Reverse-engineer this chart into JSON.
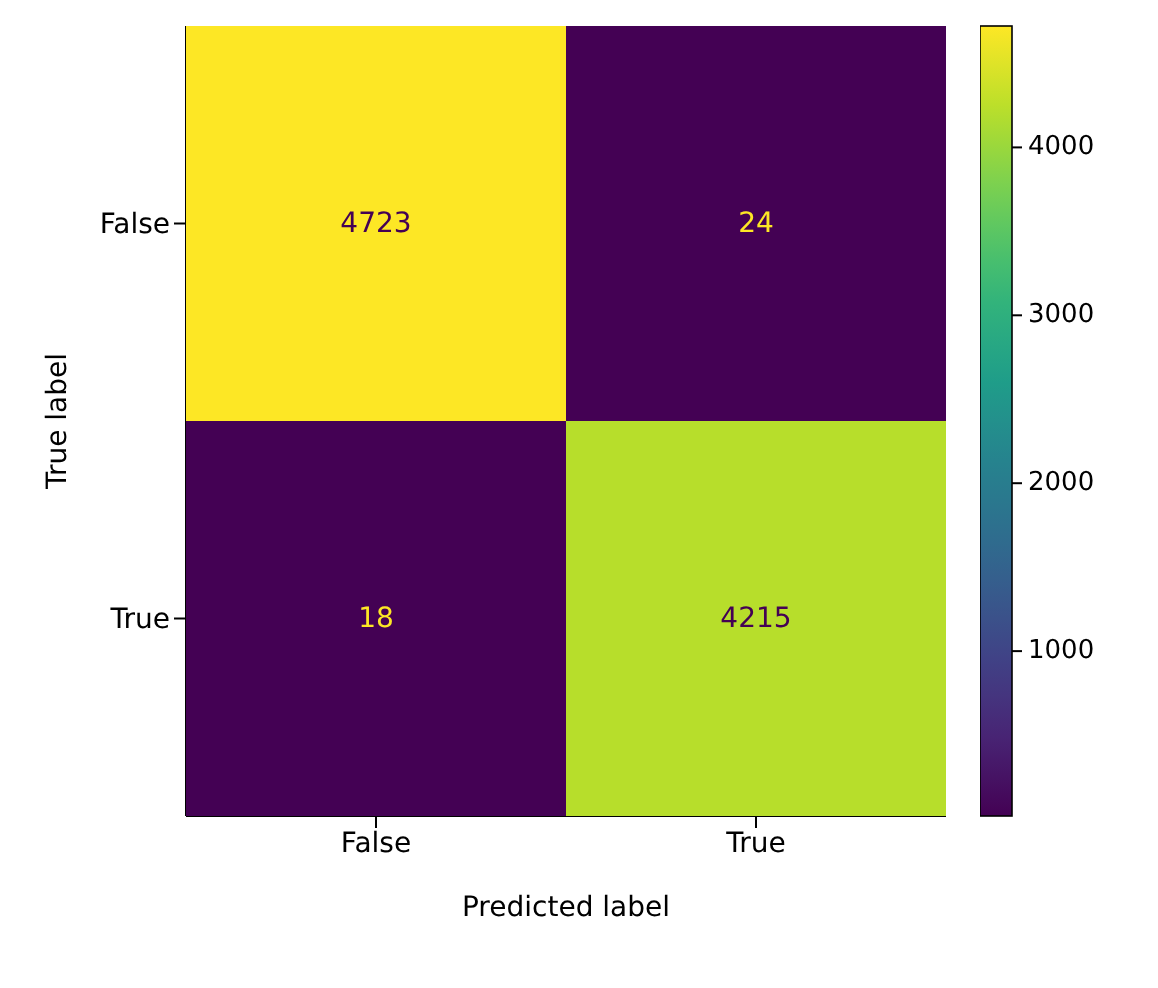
{
  "chart_data": {
    "type": "heatmap",
    "xlabel": "Predicted label",
    "ylabel": "True label",
    "categories": [
      "False",
      "True"
    ],
    "y_categories": [
      "False",
      "True"
    ],
    "cells": [
      [
        4723,
        24
      ],
      [
        18,
        4215
      ]
    ],
    "clim": [
      18,
      4723
    ],
    "cticks": [
      1000,
      2000,
      3000,
      4000
    ],
    "data_labels": true
  }
}
